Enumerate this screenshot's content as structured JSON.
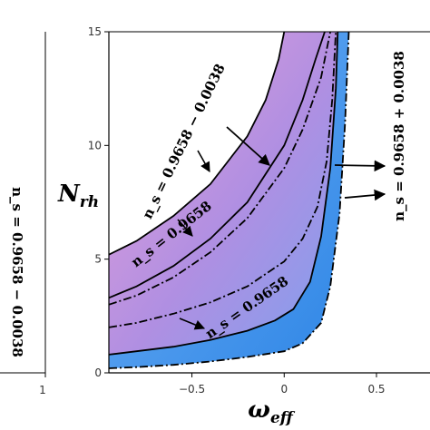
{
  "chart_data": {
    "type": "area",
    "xlabel": "ω",
    "xlabel_sub": "eff",
    "ylabel": "N",
    "ylabel_sub": "rh",
    "xlim": [
      -0.95,
      0.5
    ],
    "ylim": [
      0,
      15
    ],
    "x_ticks": [
      "−0.5",
      "0",
      "0.5"
    ],
    "x_tick_values": [
      -0.5,
      0,
      0.5
    ],
    "y_ticks": [
      "0",
      "5",
      "10",
      "15"
    ],
    "y_tick_values": [
      0,
      5,
      10,
      15
    ],
    "grid": false,
    "left_panel": {
      "x_tick": "1",
      "label": "n_s = 0.9658 − 0.0038"
    },
    "series": [
      {
        "label": "n_s = 0.9658 − 0.0038",
        "style": "solid",
        "x": [
          -0.95,
          -0.8,
          -0.6,
          -0.4,
          -0.2,
          -0.1,
          -0.03,
          0.0
        ],
        "y": [
          5.2,
          5.8,
          6.9,
          8.3,
          10.4,
          12.0,
          13.8,
          15.0
        ]
      },
      {
        "label": "n_s = 0.9658",
        "style": "solid",
        "x": [
          -0.95,
          -0.8,
          -0.6,
          -0.4,
          -0.2,
          0.0,
          0.1,
          0.17,
          0.22
        ],
        "y": [
          3.3,
          3.8,
          4.7,
          5.9,
          7.5,
          10.0,
          12.0,
          13.8,
          15.0
        ]
      },
      {
        "label": "",
        "style": "dashdot",
        "x": [
          -0.95,
          -0.8,
          -0.6,
          -0.4,
          -0.2,
          0.0,
          0.1,
          0.2,
          0.25
        ],
        "y": [
          3.0,
          3.4,
          4.2,
          5.3,
          6.8,
          9.0,
          10.7,
          13.0,
          15.0
        ]
      },
      {
        "label": "",
        "style": "dashdot",
        "x": [
          -0.95,
          -0.8,
          -0.6,
          -0.4,
          -0.2,
          0.0,
          0.1,
          0.18,
          0.23,
          0.26,
          0.28
        ],
        "y": [
          2.0,
          2.2,
          2.6,
          3.1,
          3.8,
          4.9,
          5.9,
          7.3,
          9.3,
          12.0,
          15.0
        ]
      },
      {
        "label": "n_s = 0.9658",
        "style": "solid",
        "x": [
          -0.95,
          -0.8,
          -0.6,
          -0.4,
          -0.2,
          -0.05,
          0.05,
          0.14,
          0.2,
          0.25,
          0.28,
          0.29
        ],
        "y": [
          0.8,
          0.95,
          1.15,
          1.45,
          1.85,
          2.3,
          2.8,
          4.0,
          6.0,
          9.0,
          12.5,
          15.0
        ]
      },
      {
        "label": "n_s = 0.9658 + 0.0038",
        "style": "dashdot",
        "x": [
          -0.95,
          -0.8,
          -0.6,
          -0.4,
          -0.2,
          0.0,
          0.1,
          0.2,
          0.25,
          0.3,
          0.33,
          0.35
        ],
        "y": [
          0.2,
          0.25,
          0.35,
          0.5,
          0.7,
          0.95,
          1.3,
          2.2,
          3.8,
          7.0,
          11.0,
          15.0
        ]
      }
    ],
    "fill_colors": {
      "top": "#e39ad6",
      "middle": "#a88fe3",
      "bottom": "#4f9ff0"
    },
    "annotations": [
      {
        "text": "n_s = 0.9658 − 0.0038"
      },
      {
        "text": "n_s = 0.9658"
      },
      {
        "text": "n_s = 0.9658"
      },
      {
        "text": "n_s = 0.9658 + 0.0038"
      }
    ]
  }
}
